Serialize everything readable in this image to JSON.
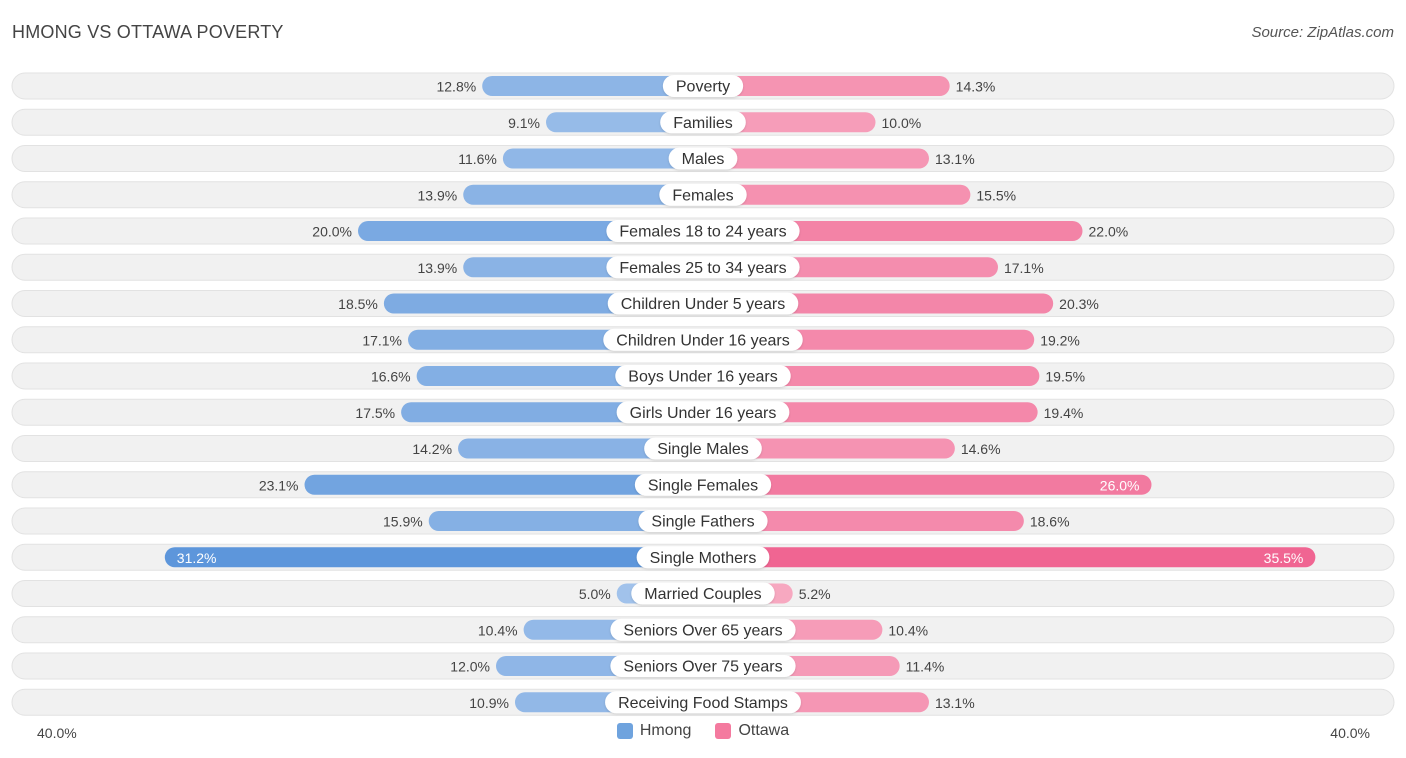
{
  "header": {
    "title": "HMONG VS OTTAWA POVERTY",
    "source": "Source: ZipAtlas.com"
  },
  "colors": {
    "hmong": "#6fa3de",
    "ottawa": "#f47a9f",
    "row_bg": "#f1f1f1"
  },
  "chart_data": {
    "type": "bar",
    "orientation": "horizontal-diverging",
    "title": "HMONG VS OTTAWA POVERTY",
    "categories": [
      "Poverty",
      "Families",
      "Males",
      "Females",
      "Females 18 to 24 years",
      "Females 25 to 34 years",
      "Children Under 5 years",
      "Children Under 16 years",
      "Boys Under 16 years",
      "Girls Under 16 years",
      "Single Males",
      "Single Females",
      "Single Fathers",
      "Single Mothers",
      "Married Couples",
      "Seniors Over 65 years",
      "Seniors Over 75 years",
      "Receiving Food Stamps"
    ],
    "series": [
      {
        "name": "Hmong",
        "values": [
          12.8,
          9.1,
          11.6,
          13.9,
          20.0,
          13.9,
          18.5,
          17.1,
          16.6,
          17.5,
          14.2,
          23.1,
          15.9,
          31.2,
          5.0,
          10.4,
          12.0,
          10.9
        ],
        "labels": [
          "12.8%",
          "9.1%",
          "11.6%",
          "13.9%",
          "20.0%",
          "13.9%",
          "18.5%",
          "17.1%",
          "16.6%",
          "17.5%",
          "14.2%",
          "23.1%",
          "15.9%",
          "31.2%",
          "5.0%",
          "10.4%",
          "12.0%",
          "10.9%"
        ]
      },
      {
        "name": "Ottawa",
        "values": [
          14.3,
          10.0,
          13.1,
          15.5,
          22.0,
          17.1,
          20.3,
          19.2,
          19.5,
          19.4,
          14.6,
          26.0,
          18.6,
          35.5,
          5.2,
          10.4,
          11.4,
          13.1
        ],
        "labels": [
          "14.3%",
          "10.0%",
          "13.1%",
          "15.5%",
          "22.0%",
          "17.1%",
          "20.3%",
          "19.2%",
          "19.5%",
          "19.4%",
          "14.6%",
          "26.0%",
          "18.6%",
          "35.5%",
          "5.2%",
          "10.4%",
          "11.4%",
          "13.1%"
        ]
      }
    ],
    "xlim": [
      -40,
      40
    ],
    "axis_labels": {
      "left": "40.0%",
      "right": "40.0%"
    },
    "legend": [
      "Hmong",
      "Ottawa"
    ],
    "legend_position": "bottom-center"
  }
}
